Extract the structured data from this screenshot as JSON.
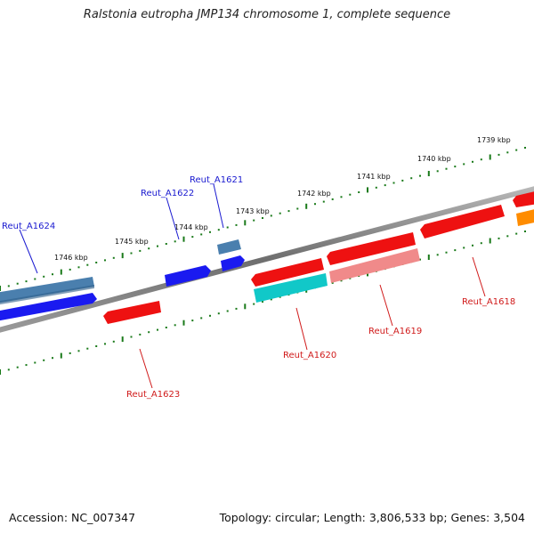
{
  "title": "Ralstonia eutropha JMP134 chromosome 1, complete sequence",
  "accession": "Accession: NC_007347",
  "summary": "Topology: circular; Length: 3,806,533 bp; Genes: 3,504",
  "colors": {
    "backbone": "#7a7a7a",
    "scale_dots": "#1a7a1a",
    "label_blue": "#1a1ad0",
    "label_red": "#d01a1a"
  },
  "scale_labels": [
    "1739 kbp",
    "1740 kbp",
    "1741 kbp",
    "1742 kbp",
    "1743 kbp",
    "1744 kbp",
    "1745 kbp",
    "1746 kbp"
  ],
  "genes": [
    {
      "label": "Reut_A1624",
      "color": "#4a7fae",
      "label_color": "#1a1ad0"
    },
    {
      "label": "Reut_A1622",
      "color": "#1a1af0",
      "label_color": "#1a1ad0"
    },
    {
      "label": "Reut_A1621",
      "color": "#4a7fae",
      "label_color": "#1a1ad0"
    },
    {
      "label": "Reut_A1623",
      "color": "#ee1111",
      "label_color": "#d01a1a"
    },
    {
      "label": "Reut_A1620",
      "color": "#11c8c8",
      "label_color": "#d01a1a"
    },
    {
      "label": "Reut_A1619",
      "color": "#f08a8a",
      "label_color": "#d01a1a"
    },
    {
      "label": "Reut_A1618",
      "color": "#ee1111",
      "label_color": "#d01a1a"
    }
  ],
  "unlabeled_features": [
    {
      "color": "#1a1af0"
    },
    {
      "color": "#1a1af0"
    },
    {
      "color": "#ee1111"
    },
    {
      "color": "#ee1111"
    },
    {
      "color": "#ee1111"
    },
    {
      "color": "#ee1111"
    },
    {
      "color": "#ff8c00"
    }
  ]
}
